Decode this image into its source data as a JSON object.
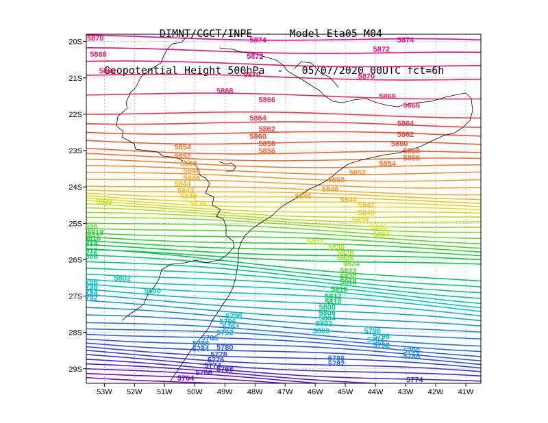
{
  "title": {
    "line1": "DIMNT/CGCT/INPE  -   Model Eta05_M04_",
    "line2": "Geopotential Height 500hPa  -   05/07/2020 00UTC fct=6h"
  },
  "axes": {
    "lon_labels": [
      "53W",
      "52W",
      "51W",
      "50W",
      "49W",
      "48W",
      "47W",
      "46W",
      "45W",
      "44W",
      "43W",
      "42W",
      "41W"
    ],
    "lat_labels": [
      "20S",
      "21S",
      "22S",
      "23S",
      "24S",
      "25S",
      "26S",
      "27S",
      "28S",
      "29S"
    ],
    "lon_range": [
      -53.6,
      -40.5
    ],
    "lat_range": [
      -29.4,
      -19.8
    ]
  },
  "chart_data": {
    "type": "contour",
    "variable": "Geopotential Height 500hPa (gpm)",
    "contour_interval": 2,
    "contour_min": 5762,
    "contour_max": 5874,
    "labels": [
      {
        "text": "5874",
        "lon": -47.9,
        "lat": -19.95
      },
      {
        "text": "5874",
        "lon": -43.0,
        "lat": -19.95
      },
      {
        "text": "5870",
        "lon": -53.3,
        "lat": -19.9
      },
      {
        "text": "5872",
        "lon": -43.8,
        "lat": -20.2
      },
      {
        "text": "5868",
        "lon": -53.2,
        "lat": -20.35
      },
      {
        "text": "5872",
        "lon": -48.0,
        "lat": -20.4
      },
      {
        "text": "5866",
        "lon": -52.9,
        "lat": -20.8
      },
      {
        "text": "5870",
        "lon": -48.1,
        "lat": -20.9
      },
      {
        "text": "5870",
        "lon": -44.3,
        "lat": -20.95
      },
      {
        "text": "5868",
        "lon": -49.0,
        "lat": -21.35
      },
      {
        "text": "5868",
        "lon": -43.6,
        "lat": -21.5
      },
      {
        "text": "5866",
        "lon": -47.6,
        "lat": -21.6
      },
      {
        "text": "5866",
        "lon": -42.8,
        "lat": -21.75
      },
      {
        "text": "5864",
        "lon": -47.9,
        "lat": -22.1
      },
      {
        "text": "5864",
        "lon": -43.0,
        "lat": -22.25
      },
      {
        "text": "5862",
        "lon": -47.6,
        "lat": -22.4
      },
      {
        "text": "5862",
        "lon": -43.0,
        "lat": -22.55
      },
      {
        "text": "5860",
        "lon": -47.9,
        "lat": -22.6
      },
      {
        "text": "5860",
        "lon": -43.2,
        "lat": -22.8
      },
      {
        "text": "5858",
        "lon": -47.6,
        "lat": -22.8
      },
      {
        "text": "5858",
        "lon": -42.8,
        "lat": -23.0
      },
      {
        "text": "5856",
        "lon": -47.6,
        "lat": -23.0
      },
      {
        "text": "5856",
        "lon": -42.8,
        "lat": -23.2
      },
      {
        "text": "5854",
        "lon": -50.4,
        "lat": -22.9
      },
      {
        "text": "5854",
        "lon": -43.6,
        "lat": -23.35
      },
      {
        "text": "5852",
        "lon": -50.4,
        "lat": -23.15
      },
      {
        "text": "5852",
        "lon": -44.6,
        "lat": -23.6
      },
      {
        "text": "5850",
        "lon": -50.2,
        "lat": -23.35
      },
      {
        "text": "5850",
        "lon": -45.3,
        "lat": -23.8
      },
      {
        "text": "5848",
        "lon": -50.1,
        "lat": -23.55
      },
      {
        "text": "5848",
        "lon": -45.5,
        "lat": -24.05
      },
      {
        "text": "5846",
        "lon": -50.1,
        "lat": -23.75
      },
      {
        "text": "5846",
        "lon": -46.4,
        "lat": -24.25
      },
      {
        "text": "5844",
        "lon": -50.4,
        "lat": -23.9
      },
      {
        "text": "5844",
        "lon": -44.9,
        "lat": -24.35
      },
      {
        "text": "5842",
        "lon": -50.3,
        "lat": -24.1
      },
      {
        "text": "5842",
        "lon": -44.3,
        "lat": -24.5
      },
      {
        "text": "5840",
        "lon": -50.2,
        "lat": -24.25
      },
      {
        "text": "5840",
        "lon": -44.3,
        "lat": -24.7
      },
      {
        "text": "5838",
        "lon": -49.9,
        "lat": -24.45
      },
      {
        "text": "5838",
        "lon": -44.5,
        "lat": -24.9
      },
      {
        "text": "5836",
        "lon": -43.9,
        "lat": -25.1
      },
      {
        "text": "5834",
        "lon": -43.8,
        "lat": -25.3
      },
      {
        "text": "5832",
        "lon": -53.0,
        "lat": -24.4
      },
      {
        "text": "5832",
        "lon": -46.0,
        "lat": -25.5
      },
      {
        "text": "5830",
        "lon": -45.3,
        "lat": -25.65
      },
      {
        "text": "5828",
        "lon": -45.0,
        "lat": -25.8
      },
      {
        "text": "5826",
        "lon": -45.0,
        "lat": -25.95
      },
      {
        "text": "5824",
        "lon": -44.8,
        "lat": -26.1
      },
      {
        "text": "5822",
        "lon": -44.9,
        "lat": -26.3
      },
      {
        "text": "5820",
        "lon": -53.5,
        "lat": -25.1
      },
      {
        "text": "5820",
        "lon": -44.9,
        "lat": -26.45
      },
      {
        "text": "5818",
        "lon": -53.3,
        "lat": -25.25
      },
      {
        "text": "5818",
        "lon": -44.9,
        "lat": -26.6
      },
      {
        "text": "5816",
        "lon": -53.4,
        "lat": -25.4
      },
      {
        "text": "5816",
        "lon": -45.2,
        "lat": -26.8
      },
      {
        "text": "5814",
        "lon": -53.5,
        "lat": -25.55
      },
      {
        "text": "5812",
        "lon": -53.5,
        "lat": -25.75
      },
      {
        "text": "5812",
        "lon": -45.4,
        "lat": -27.0
      },
      {
        "text": "5810",
        "lon": -45.4,
        "lat": -27.15
      },
      {
        "text": "5808",
        "lon": -53.5,
        "lat": -25.9
      },
      {
        "text": "5808",
        "lon": -45.6,
        "lat": -27.3
      },
      {
        "text": "5806",
        "lon": -45.6,
        "lat": -27.45
      },
      {
        "text": "5804",
        "lon": -45.6,
        "lat": -27.6
      },
      {
        "text": "5802",
        "lon": -52.4,
        "lat": -26.5
      },
      {
        "text": "5802",
        "lon": -45.7,
        "lat": -27.75
      },
      {
        "text": "5800",
        "lon": -51.4,
        "lat": -26.85
      },
      {
        "text": "5800",
        "lon": -45.8,
        "lat": -27.95
      },
      {
        "text": "5798",
        "lon": -53.5,
        "lat": -26.6
      },
      {
        "text": "5798",
        "lon": -48.7,
        "lat": -27.55
      },
      {
        "text": "5798",
        "lon": -44.1,
        "lat": -27.95
      },
      {
        "text": "5796",
        "lon": -53.5,
        "lat": -26.75
      },
      {
        "text": "5796",
        "lon": -48.9,
        "lat": -27.7
      },
      {
        "text": "5796",
        "lon": -43.8,
        "lat": -28.1
      },
      {
        "text": "5794",
        "lon": -53.5,
        "lat": -26.9
      },
      {
        "text": "5794",
        "lon": -48.8,
        "lat": -27.85
      },
      {
        "text": "5794",
        "lon": -44.0,
        "lat": -28.2
      },
      {
        "text": "5792",
        "lon": -53.5,
        "lat": -27.05
      },
      {
        "text": "5792",
        "lon": -49.0,
        "lat": -28.0
      },
      {
        "text": "5792",
        "lon": -43.8,
        "lat": -28.35
      },
      {
        "text": "5790",
        "lon": -42.8,
        "lat": -28.5
      },
      {
        "text": "5788",
        "lon": -49.8,
        "lat": -28.3
      },
      {
        "text": "5788",
        "lon": -42.8,
        "lat": -28.65
      },
      {
        "text": "5786",
        "lon": -49.5,
        "lat": -28.15
      },
      {
        "text": "5786",
        "lon": -45.3,
        "lat": -28.7
      },
      {
        "text": "5784",
        "lon": -49.8,
        "lat": -28.45
      },
      {
        "text": "5782",
        "lon": -45.3,
        "lat": -28.85
      },
      {
        "text": "5780",
        "lon": -49.0,
        "lat": -28.4
      },
      {
        "text": "5778",
        "lon": -49.2,
        "lat": -28.6
      },
      {
        "text": "5776",
        "lon": -49.3,
        "lat": -28.75
      },
      {
        "text": "5774",
        "lon": -49.4,
        "lat": -28.9
      },
      {
        "text": "5774",
        "lon": -42.7,
        "lat": -29.3
      },
      {
        "text": "5768",
        "lon": -49.0,
        "lat": -29.0
      },
      {
        "text": "5766",
        "lon": -49.7,
        "lat": -29.1
      },
      {
        "text": "5764",
        "lon": -50.3,
        "lat": -29.25
      }
    ]
  }
}
